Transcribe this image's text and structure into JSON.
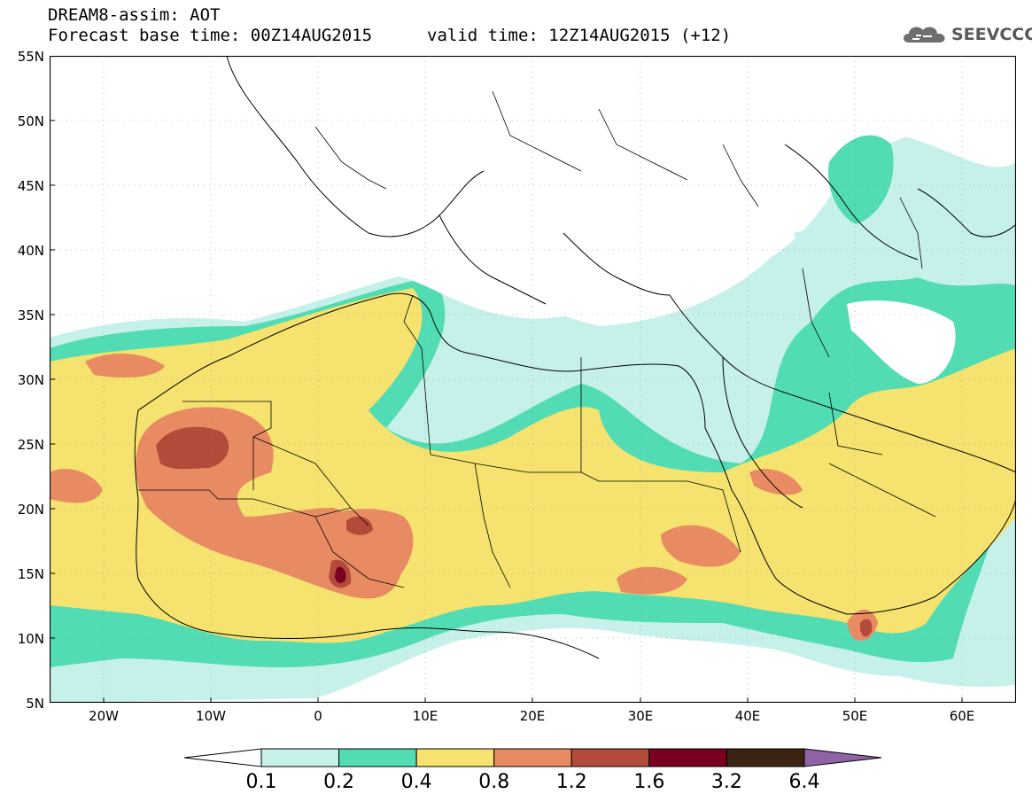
{
  "title": {
    "line1": "DREAM8-assim: AOT",
    "line2": "Forecast base time: 00Z14AUG2015",
    "valid": "valid time: 12Z14AUG2015 (+12)"
  },
  "logo": {
    "text": "SEEVCCC",
    "icon": "cloud-icon"
  },
  "map": {
    "lat_labels": [
      "55N",
      "50N",
      "45N",
      "40N",
      "35N",
      "30N",
      "25N",
      "20N",
      "15N",
      "10N",
      "5N"
    ],
    "lon_labels": [
      "20W",
      "10W",
      "0",
      "10E",
      "20E",
      "30E",
      "40E",
      "50E",
      "60E"
    ],
    "lon_range": [
      -25,
      65
    ],
    "lat_range": [
      5,
      55
    ]
  },
  "colorbar": {
    "labels": [
      "0.1",
      "0.2",
      "0.4",
      "0.8",
      "1.2",
      "1.6",
      "3.2",
      "6.4"
    ],
    "colors": [
      "#ffffff",
      "#c6f0ea",
      "#52dcb4",
      "#f6e26e",
      "#e88b62",
      "#b34a3a",
      "#7a0022",
      "#3c2414",
      "#8f63a6"
    ]
  }
}
